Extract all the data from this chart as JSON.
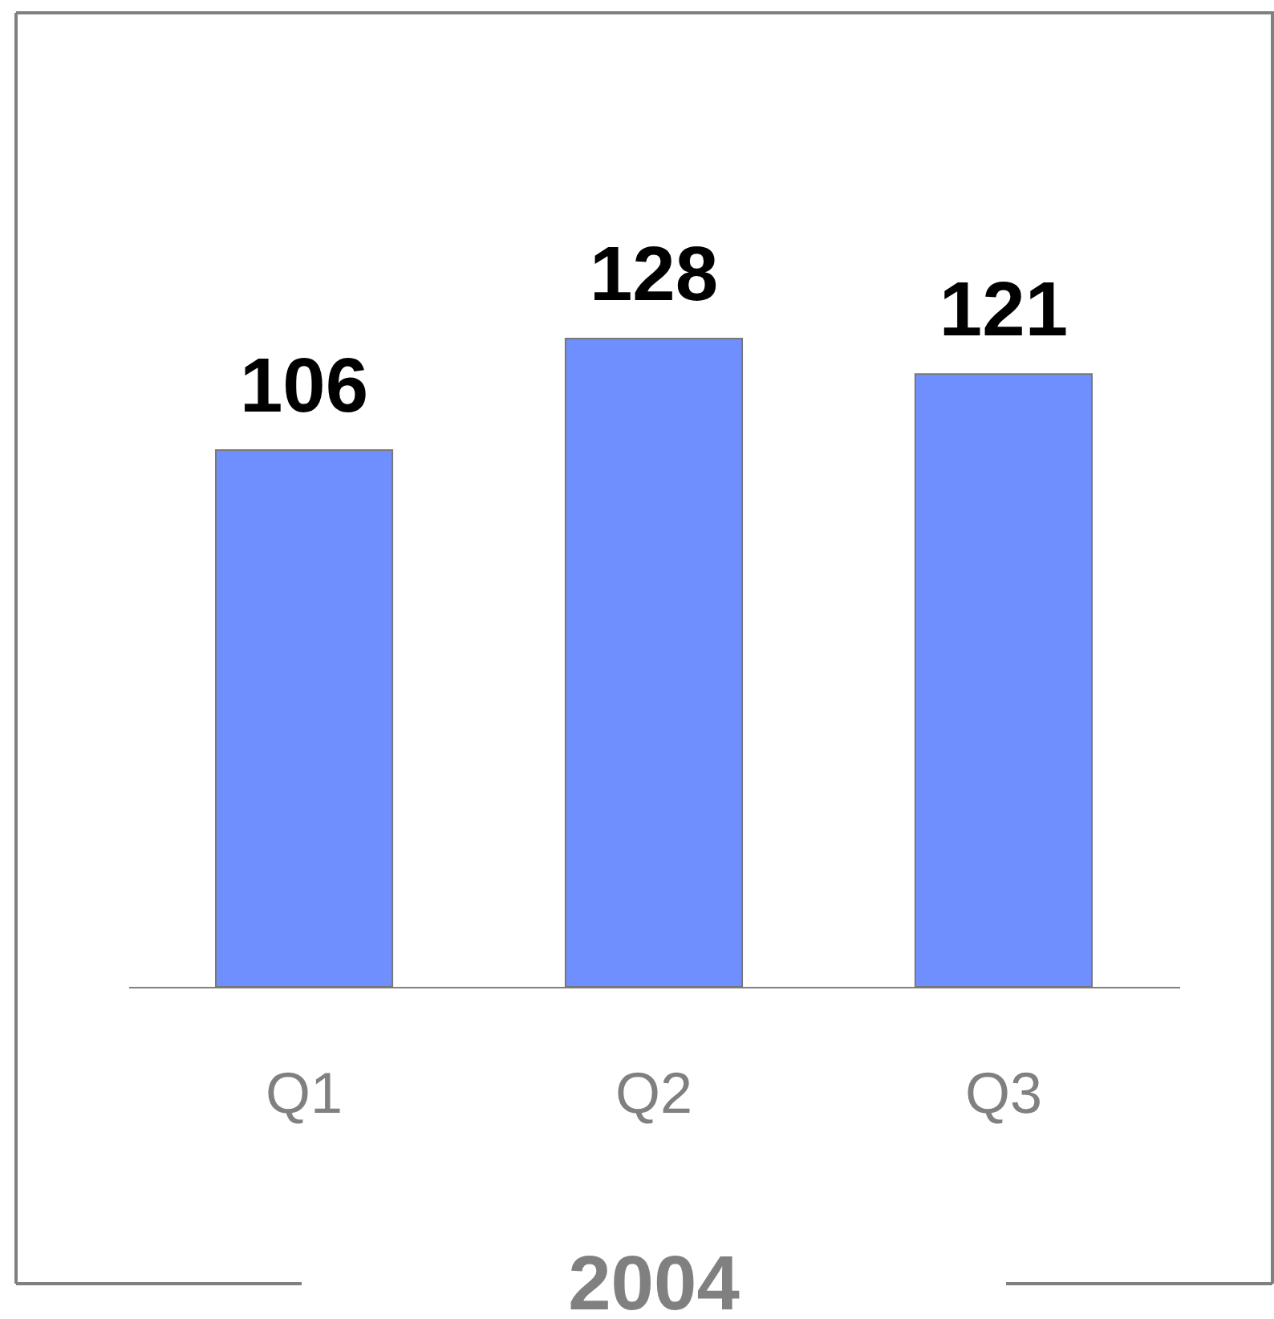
{
  "chart_data": {
    "type": "bar",
    "title": "2004",
    "categories": [
      "Q1",
      "Q2",
      "Q3"
    ],
    "values": [
      106,
      128,
      121
    ],
    "color": "#6f8fff",
    "data_labels": true,
    "grid": false
  }
}
